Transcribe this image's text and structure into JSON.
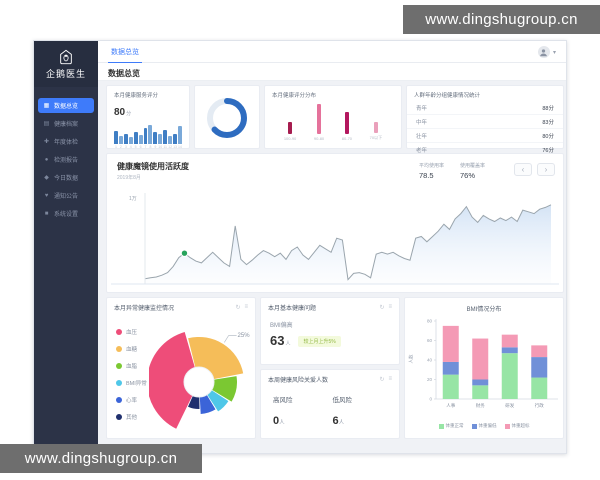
{
  "watermark": {
    "text": "www.dingshugroup.cn"
  },
  "app": {
    "logo_text": "企鹅医生",
    "topbar": {
      "tab": "数据总览"
    },
    "page_title": "数据总览"
  },
  "colors": {
    "accent_blue": "#3e7bfa",
    "sidebar_bg": "#2c3347",
    "donut_arc": "#2e6cc0",
    "donut_track": "#e4ebf3",
    "area_line": "#9aa5ad",
    "dot_green": "#27a35c"
  },
  "sidebar": {
    "items": [
      {
        "label": "数据总览",
        "icon": "overview-icon",
        "active": true
      },
      {
        "label": "健康档案",
        "icon": "archive-icon",
        "active": false
      },
      {
        "label": "年度体检",
        "icon": "annual-icon",
        "active": false
      },
      {
        "label": "检测报告",
        "icon": "report-icon",
        "active": false
      },
      {
        "label": "今日数据",
        "icon": "today-icon",
        "active": false
      },
      {
        "label": "通知公告",
        "icon": "notice-icon",
        "active": false
      },
      {
        "label": "系统设置",
        "icon": "settings-icon",
        "active": false
      }
    ]
  },
  "cards": {
    "service_score": {
      "title": "本月健康服务评分",
      "value": "80",
      "unit": "分",
      "chart": {
        "type": "bar",
        "values": [
          60,
          35,
          45,
          30,
          55,
          40,
          75,
          85,
          55,
          45,
          65,
          35,
          45,
          80
        ],
        "labels": [
          "1",
          "2",
          "3",
          "4",
          "5",
          "6",
          "7",
          "8",
          "9",
          "10",
          "11",
          "12",
          "13",
          "14"
        ],
        "colors": [
          "#3f7ec4",
          "#7aa9d9"
        ]
      }
    },
    "donut": {
      "percent": 63
    },
    "score_dist": {
      "title": "本月健康评分分布",
      "chart": {
        "type": "bar",
        "categories": [
          "100-90",
          "90-80",
          "80-70",
          "70以下"
        ],
        "values": [
          28,
          68,
          50,
          25
        ],
        "colors": [
          "#a61c4f",
          "#e5729b",
          "#b3175e",
          "#eaa0bb"
        ]
      }
    },
    "age_group": {
      "title": "人群年龄分组健康情况统计",
      "rows": [
        {
          "label": "青年",
          "value": "88分"
        },
        {
          "label": "中年",
          "value": "83分"
        },
        {
          "label": "壮年",
          "value": "80分"
        },
        {
          "label": "老年",
          "value": "76分"
        }
      ]
    },
    "activity": {
      "title": "健康魔镜使用活跃度",
      "subtitle": "2019年8月",
      "stats": [
        {
          "label": "平均使用率",
          "value": "78.5"
        },
        {
          "label": "使用覆盖率",
          "value": "76%"
        }
      ],
      "nav": {
        "prev": "‹",
        "next": "›"
      },
      "y_max_label": "1万",
      "chart": {
        "type": "area",
        "points": [
          6,
          7,
          8,
          10,
          13,
          20,
          30,
          35,
          30,
          26,
          24,
          30,
          36,
          30,
          24,
          20,
          66,
          28,
          22,
          27,
          33,
          38,
          35,
          31,
          35,
          28,
          38,
          42,
          33,
          28,
          36,
          44,
          40,
          36,
          52,
          50,
          5,
          12,
          13,
          11,
          7,
          34,
          36,
          34,
          36,
          32,
          29,
          27,
          52,
          54,
          48,
          54,
          60,
          68,
          62,
          74,
          80,
          88,
          76,
          70,
          78,
          74,
          71,
          75,
          72,
          76,
          71,
          84,
          82,
          80,
          85,
          87,
          90
        ],
        "dot_index": 7
      }
    },
    "abnormal": {
      "title": "本月异常健康监控情况",
      "icons": [
        "refresh-icon",
        "menu-icon"
      ],
      "callout": "25%",
      "chart": {
        "type": "pie",
        "start_deg": 205,
        "slices": [
          {
            "label": "血压",
            "color": "#ee4d79",
            "deg": 140,
            "r": 52
          },
          {
            "label": "血糖",
            "color": "#f5bd59",
            "deg": 95,
            "r": 45
          },
          {
            "label": "血脂",
            "color": "#7bc832",
            "deg": 42,
            "r": 38
          },
          {
            "label": "BMI异常",
            "color": "#4fc7e8",
            "deg": 26,
            "r": 35
          },
          {
            "label": "心率",
            "color": "#3b64d8",
            "deg": 30,
            "r": 32
          },
          {
            "label": "其他",
            "color": "#20306e",
            "deg": 27,
            "r": 27
          }
        ]
      }
    },
    "bmi_issue": {
      "title": "本月基本健康问题",
      "icons": [
        "refresh-icon",
        "menu-icon"
      ],
      "metric": "BMI偏高",
      "value": "63",
      "unit": "人",
      "tag": "较上月上升5%"
    },
    "risk": {
      "title": "本周健康风险关爱人数",
      "icons": [
        "refresh-icon",
        "menu-icon"
      ],
      "items": [
        {
          "label": "高风险",
          "value": "0",
          "unit": "人"
        },
        {
          "label": "低风险",
          "value": "6",
          "unit": "人"
        }
      ]
    },
    "bmi_dist": {
      "title": "BMI情况分布",
      "ylabel": "人数",
      "yticks": [
        0,
        20,
        40,
        60,
        80
      ],
      "categories": [
        "人事",
        "财务",
        "研发",
        "行政"
      ],
      "chart": {
        "type": "bar",
        "series": [
          {
            "name": "体重正常",
            "color": "#97e5a5",
            "values": [
              25,
              14,
              47,
              22
            ]
          },
          {
            "name": "体重偏低",
            "color": "#7090d8",
            "values": [
              13,
              6,
              6,
              21
            ]
          },
          {
            "name": "体重超标",
            "color": "#f49ab5",
            "values": [
              37,
              42,
              13,
              12
            ]
          }
        ]
      }
    }
  }
}
